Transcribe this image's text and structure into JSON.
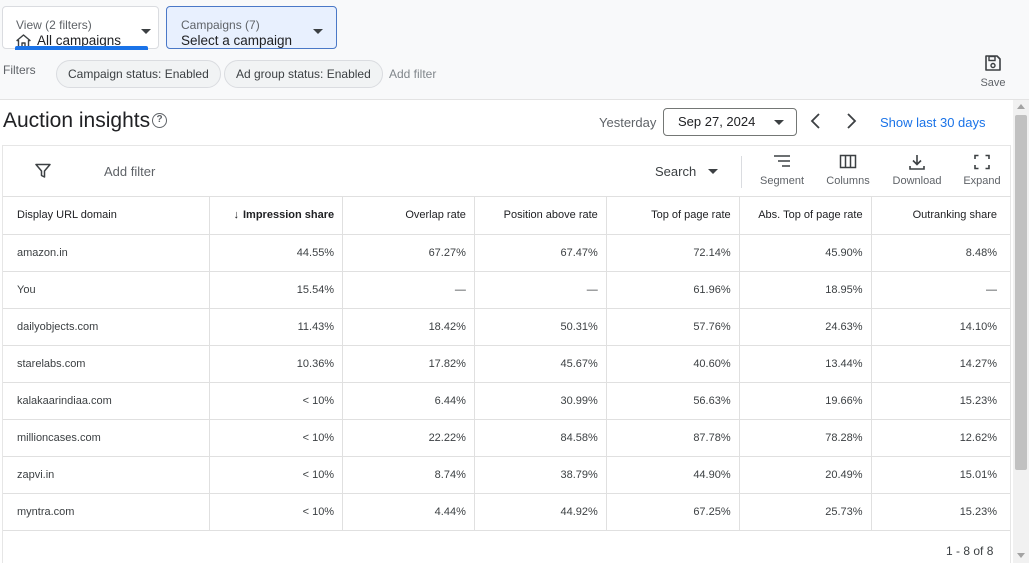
{
  "header": {
    "view_picker": {
      "sub": "View (2 filters)",
      "value": "All campaigns"
    },
    "campaign_picker": {
      "sub": "Campaigns (7)",
      "value": "Select a campaign"
    },
    "filters_label": "Filters",
    "chips": [
      "Campaign status: Enabled",
      "Ad group status: Enabled"
    ],
    "add_filter": "Add filter",
    "save_label": "Save"
  },
  "title_row": {
    "title": "Auction insights",
    "help_glyph": "?",
    "date_preset": "Yesterday",
    "date_value": "Sep 27, 2024",
    "show_last": "Show last 30 days"
  },
  "toolbar": {
    "add_filter": "Add filter",
    "search_dropdown": "Search",
    "segment": "Segment",
    "columns": "Columns",
    "download": "Download",
    "expand": "Expand"
  },
  "table": {
    "sort_glyph": "↓",
    "columns": [
      "Display URL domain",
      "Impression share",
      "Overlap rate",
      "Position above rate",
      "Top of page rate",
      "Abs. Top of page rate",
      "Outranking share"
    ],
    "rows": [
      [
        "amazon.in",
        "44.55%",
        "67.27%",
        "67.47%",
        "72.14%",
        "45.90%",
        "8.48%"
      ],
      [
        "You",
        "15.54%",
        "—",
        "—",
        "61.96%",
        "18.95%",
        "—"
      ],
      [
        "dailyobjects.com",
        "11.43%",
        "18.42%",
        "50.31%",
        "57.76%",
        "24.63%",
        "14.10%"
      ],
      [
        "starelabs.com",
        "10.36%",
        "17.82%",
        "45.67%",
        "40.60%",
        "13.44%",
        "14.27%"
      ],
      [
        "kalakaarindiaa.com",
        "< 10%",
        "6.44%",
        "30.99%",
        "56.63%",
        "19.66%",
        "15.23%"
      ],
      [
        "millioncases.com",
        "< 10%",
        "22.22%",
        "84.58%",
        "87.78%",
        "78.28%",
        "12.62%"
      ],
      [
        "zapvi.in",
        "< 10%",
        "8.74%",
        "38.79%",
        "44.90%",
        "20.49%",
        "15.01%"
      ],
      [
        "myntra.com",
        "< 10%",
        "4.44%",
        "44.92%",
        "67.25%",
        "25.73%",
        "15.23%"
      ]
    ],
    "pager": "1 - 8 of 8"
  },
  "colors": {
    "accent": "#1a73e8",
    "picker_active_bg": "#e8f0fe"
  },
  "icons": [
    "home-icon",
    "save-icon",
    "help-icon",
    "chevron-left-icon",
    "chevron-right-icon",
    "filter-icon",
    "segment-icon",
    "columns-icon",
    "download-icon",
    "expand-icon"
  ]
}
